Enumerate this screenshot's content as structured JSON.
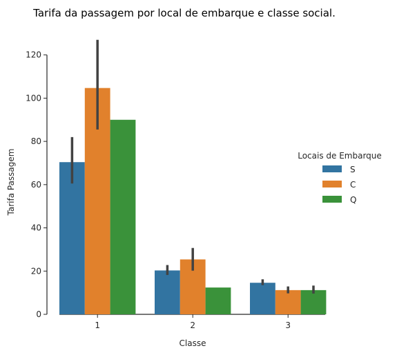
{
  "chart_data": {
    "type": "bar",
    "title": "Tarifa da passagem por local de embarque e classe social.",
    "xlabel": "Classe",
    "ylabel": "Tarifa Passagem",
    "categories": [
      "1",
      "2",
      "3"
    ],
    "ylim": [
      0,
      125
    ],
    "yticks": [
      0,
      20,
      40,
      60,
      80,
      100,
      120
    ],
    "grid": false,
    "legend": {
      "title": "Locais de Embarque",
      "position": "right"
    },
    "series": [
      {
        "name": "S",
        "color": "#3274a1",
        "values": [
          70.4,
          20.3,
          14.6
        ],
        "ci": [
          [
            60.5,
            82.0
          ],
          [
            18.2,
            22.8
          ],
          [
            13.5,
            16.2
          ]
        ]
      },
      {
        "name": "C",
        "color": "#e1812c",
        "values": [
          104.7,
          25.4,
          11.2
        ],
        "ci": [
          [
            85.5,
            127.0
          ],
          [
            20.2,
            30.7
          ],
          [
            9.7,
            12.9
          ]
        ]
      },
      {
        "name": "Q",
        "color": "#3a923a",
        "values": [
          90.0,
          12.4,
          11.2
        ],
        "ci": [
          null,
          null,
          [
            9.6,
            13.3
          ]
        ]
      }
    ]
  }
}
